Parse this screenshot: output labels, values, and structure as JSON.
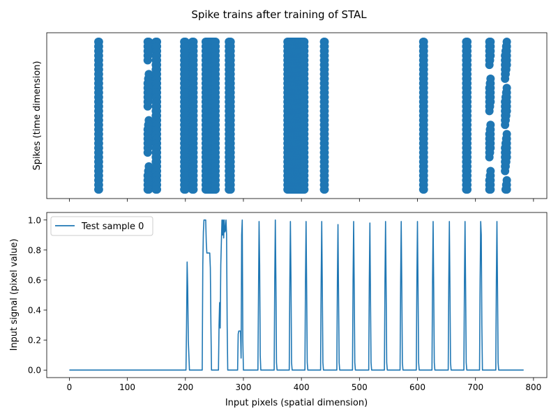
{
  "figure": {
    "title": "Spike trains after training of STAL"
  },
  "chart_data": [
    {
      "type": "scatter",
      "title": "",
      "xlabel": "",
      "ylabel": "Spikes (time dimension)",
      "xlim": [
        -39,
        823
      ],
      "yticks_visible": false,
      "xticklabels_visible": false,
      "xticks": [
        0,
        100,
        200,
        300,
        400,
        500,
        600,
        700,
        800
      ],
      "grid": false,
      "legend": "none",
      "color": "#1f77b4",
      "spike_columns": [
        50,
        51,
        135,
        136,
        137,
        149,
        150,
        151,
        198,
        199,
        200,
        212,
        213,
        214,
        235,
        236,
        237,
        238,
        239,
        240,
        241,
        242,
        243,
        244,
        245,
        246,
        247,
        248,
        249,
        250,
        251,
        252,
        275,
        276,
        277,
        278,
        376,
        377,
        378,
        379,
        380,
        381,
        382,
        383,
        384,
        385,
        386,
        387,
        388,
        389,
        390,
        391,
        392,
        393,
        394,
        395,
        396,
        397,
        398,
        399,
        400,
        401,
        402,
        403,
        404,
        405,
        439,
        440,
        610,
        611,
        684,
        685,
        686,
        724,
        725,
        726,
        751,
        752,
        753,
        754
      ],
      "sparse_columns": [
        135,
        136,
        137,
        724,
        725,
        726,
        751,
        752,
        753,
        754
      ]
    },
    {
      "type": "line",
      "title": "",
      "xlabel": "Input pixels (spatial dimension)",
      "ylabel": "Input signal (pixel value)",
      "xlim": [
        -39,
        823
      ],
      "ylim": [
        -0.05,
        1.05
      ],
      "xticks": [
        0,
        100,
        200,
        300,
        400,
        500,
        600,
        700,
        800
      ],
      "yticks": [
        0.0,
        0.2,
        0.4,
        0.6,
        0.8,
        1.0
      ],
      "xticklabels": [
        "0",
        "100",
        "200",
        "300",
        "400",
        "500",
        "600",
        "700",
        "800"
      ],
      "yticklabels": [
        "0.0",
        "0.2",
        "0.4",
        "0.6",
        "0.8",
        "1.0"
      ],
      "grid": false,
      "legend": "top-left",
      "series": [
        {
          "name": "Test sample 0",
          "color": "#1f77b4",
          "points": [
            [
              0,
              0
            ],
            [
              201,
              0
            ],
            [
              202,
              0.3
            ],
            [
              203,
              0.72
            ],
            [
              204,
              0.55
            ],
            [
              205,
              0.2
            ],
            [
              206,
              0.1
            ],
            [
              207,
              0
            ],
            [
              229,
              0
            ],
            [
              230,
              0.7
            ],
            [
              231,
              0.92
            ],
            [
              232,
              1.0
            ],
            [
              235,
              1.0
            ],
            [
              236,
              0.85
            ],
            [
              237,
              0.78
            ],
            [
              242,
              0.78
            ],
            [
              243,
              0.68
            ],
            [
              244,
              0.3
            ],
            [
              245,
              0
            ],
            [
              257,
              0
            ],
            [
              258,
              0.3
            ],
            [
              259,
              0.45
            ],
            [
              260,
              0.28
            ],
            [
              261,
              0.7
            ],
            [
              263,
              1.0
            ],
            [
              264,
              0.9
            ],
            [
              265,
              1.0
            ],
            [
              266,
              0.88
            ],
            [
              267,
              1.0
            ],
            [
              268,
              0.92
            ],
            [
              269,
              0.93
            ],
            [
              270,
              1.0
            ],
            [
              271,
              0.9
            ],
            [
              272,
              0.3
            ],
            [
              273,
              0
            ],
            [
              290,
              0
            ],
            [
              291,
              0.24
            ],
            [
              292,
              0.26
            ],
            [
              295,
              0.26
            ],
            [
              296,
              0.08
            ],
            [
              297,
              0.9
            ],
            [
              298,
              1.0
            ],
            [
              299,
              0.2
            ],
            [
              300,
              0
            ],
            [
              325,
              0
            ],
            [
              326,
              0.5
            ],
            [
              327,
              0.99
            ],
            [
              328,
              0.7
            ],
            [
              329,
              0.1
            ],
            [
              330,
              0
            ],
            [
              353,
              0
            ],
            [
              354,
              0.6
            ],
            [
              355,
              1.0
            ],
            [
              356,
              0.6
            ],
            [
              357,
              0.05
            ],
            [
              358,
              0
            ],
            [
              379,
              0
            ],
            [
              380,
              0.6
            ],
            [
              381,
              0.99
            ],
            [
              382,
              0.6
            ],
            [
              383,
              0.05
            ],
            [
              384,
              0
            ],
            [
              406,
              0
            ],
            [
              407,
              0.6
            ],
            [
              408,
              0.99
            ],
            [
              409,
              0.55
            ],
            [
              410,
              0.05
            ],
            [
              411,
              0
            ],
            [
              433,
              0
            ],
            [
              434,
              0.6
            ],
            [
              435,
              0.99
            ],
            [
              436,
              0.55
            ],
            [
              437,
              0.05
            ],
            [
              438,
              0
            ],
            [
              461,
              0
            ],
            [
              462,
              0.6
            ],
            [
              463,
              0.97
            ],
            [
              464,
              0.5
            ],
            [
              465,
              0.05
            ],
            [
              466,
              0
            ],
            [
              488,
              0
            ],
            [
              489,
              0.6
            ],
            [
              490,
              0.99
            ],
            [
              491,
              0.55
            ],
            [
              492,
              0.05
            ],
            [
              493,
              0
            ],
            [
              516,
              0
            ],
            [
              517,
              0.6
            ],
            [
              518,
              0.98
            ],
            [
              519,
              0.5
            ],
            [
              520,
              0.05
            ],
            [
              521,
              0
            ],
            [
              543,
              0
            ],
            [
              544,
              0.6
            ],
            [
              545,
              0.99
            ],
            [
              546,
              0.55
            ],
            [
              547,
              0.05
            ],
            [
              548,
              0
            ],
            [
              570,
              0
            ],
            [
              571,
              0.6
            ],
            [
              572,
              0.99
            ],
            [
              573,
              0.55
            ],
            [
              574,
              0.05
            ],
            [
              575,
              0
            ],
            [
              598,
              0
            ],
            [
              599,
              0.6
            ],
            [
              600,
              0.99
            ],
            [
              601,
              0.55
            ],
            [
              602,
              0.05
            ],
            [
              603,
              0
            ],
            [
              625,
              0
            ],
            [
              626,
              0.6
            ],
            [
              627,
              0.99
            ],
            [
              628,
              0.55
            ],
            [
              629,
              0.05
            ],
            [
              630,
              0
            ],
            [
              653,
              0
            ],
            [
              654,
              0.6
            ],
            [
              655,
              0.99
            ],
            [
              656,
              0.55
            ],
            [
              657,
              0.05
            ],
            [
              658,
              0
            ],
            [
              680,
              0
            ],
            [
              681,
              0.6
            ],
            [
              682,
              0.99
            ],
            [
              683,
              0.55
            ],
            [
              684,
              0.05
            ],
            [
              685,
              0
            ],
            [
              707,
              0
            ],
            [
              708,
              0.6
            ],
            [
              709,
              0.99
            ],
            [
              710,
              0.9
            ],
            [
              711,
              0.3
            ],
            [
              712,
              0
            ],
            [
              735,
              0
            ],
            [
              736,
              0.6
            ],
            [
              737,
              0.99
            ],
            [
              738,
              0.55
            ],
            [
              739,
              0.05
            ],
            [
              740,
              0
            ],
            [
              783,
              0
            ]
          ]
        }
      ]
    }
  ]
}
